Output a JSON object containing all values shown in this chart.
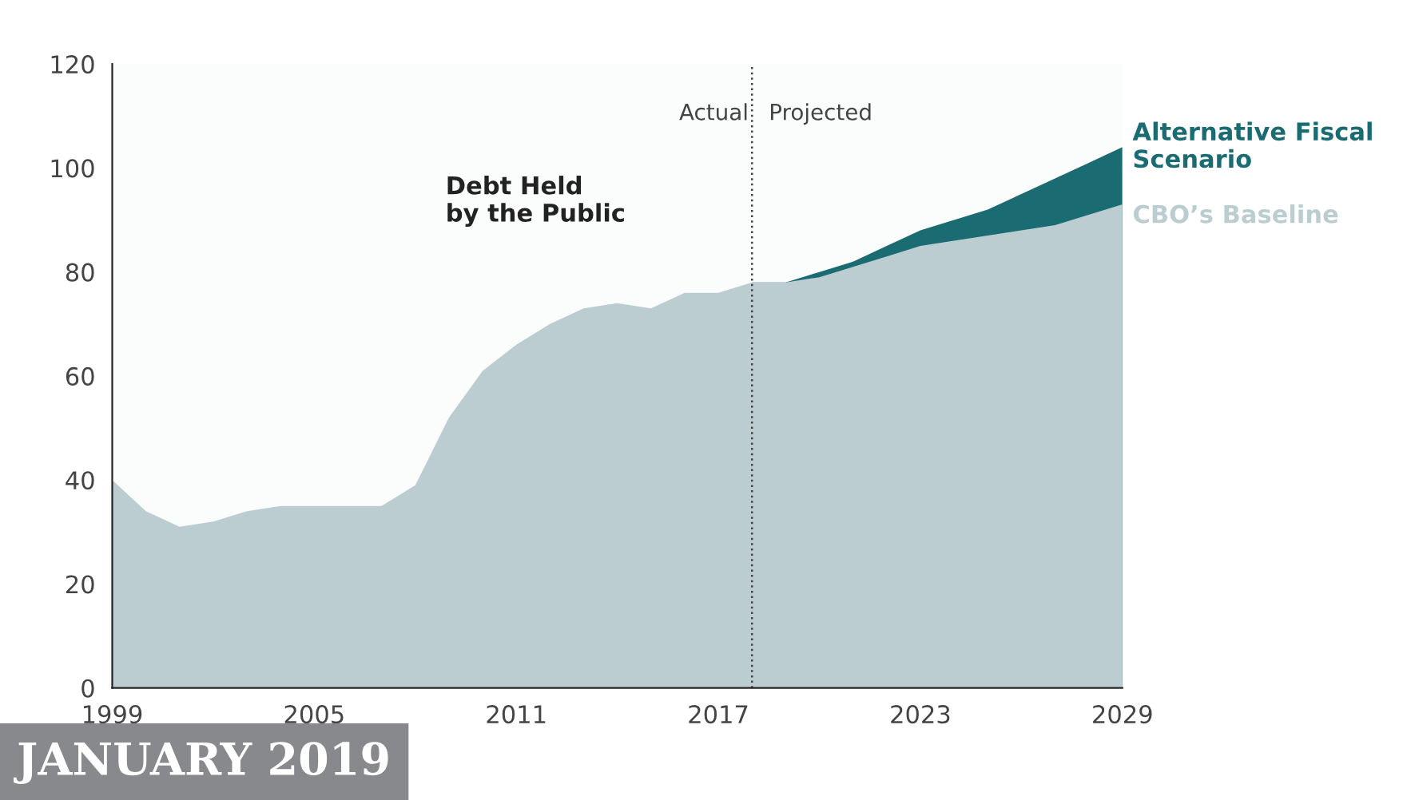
{
  "chart_data": {
    "type": "area",
    "x": [
      1999,
      2000,
      2001,
      2002,
      2003,
      2004,
      2005,
      2006,
      2007,
      2008,
      2009,
      2010,
      2011,
      2012,
      2013,
      2014,
      2015,
      2016,
      2017,
      2018,
      2019,
      2020,
      2021,
      2022,
      2023,
      2024,
      2025,
      2026,
      2027,
      2028,
      2029
    ],
    "series": [
      {
        "name": "Alternative Fiscal Scenario",
        "color": "#1b6b73",
        "x": [
          2018,
          2019,
          2020,
          2021,
          2022,
          2023,
          2024,
          2025,
          2026,
          2027,
          2028,
          2029
        ],
        "values": [
          78,
          78,
          80,
          82,
          85,
          88,
          90,
          92,
          95,
          98,
          101,
          104
        ]
      },
      {
        "name": "CBO’s Baseline",
        "color": "#bccdd2",
        "values": [
          40,
          34,
          31,
          32,
          34,
          35,
          35,
          35,
          35,
          39,
          52,
          61,
          66,
          70,
          73,
          74,
          73,
          76,
          76,
          78,
          78,
          79,
          81,
          83,
          85,
          86,
          87,
          88,
          89,
          91,
          93
        ]
      }
    ],
    "xlim": [
      1999,
      2029
    ],
    "xticks": [
      1999,
      2005,
      2011,
      2017,
      2023,
      2029
    ],
    "ylim": [
      0,
      120
    ],
    "yticks": [
      0,
      20,
      40,
      60,
      80,
      100,
      120
    ],
    "ref_lines": [
      {
        "axis": "x",
        "value": 2018,
        "color": "#444444",
        "line_style": "dotted"
      }
    ],
    "annotations": [
      "Debt Held\nby the Public",
      "Actual",
      "Projected",
      "JANUARY 2019"
    ],
    "grid": false,
    "legend": false
  }
}
